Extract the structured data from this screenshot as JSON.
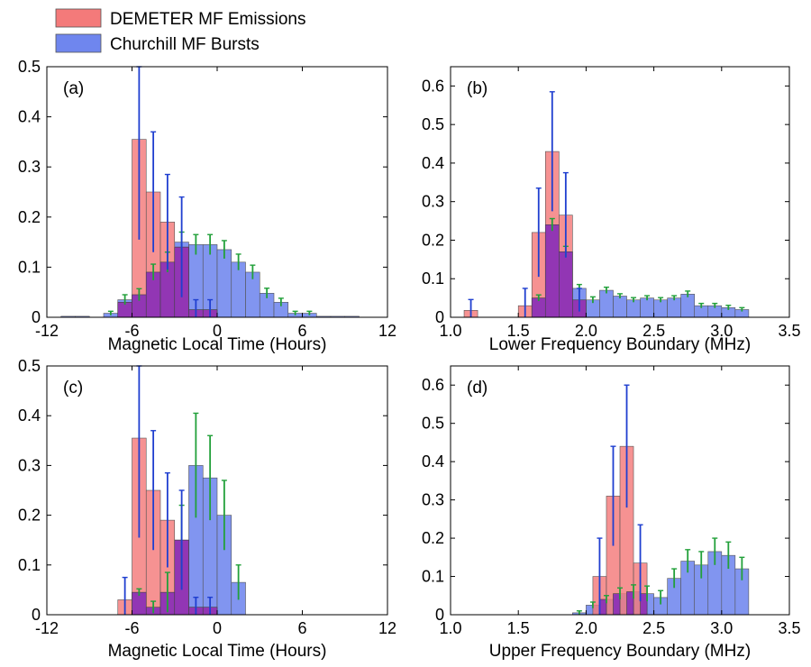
{
  "legend": {
    "placement": "top-left",
    "items": [
      {
        "label": "DEMETER MF Emissions",
        "color": "#f47a7a"
      },
      {
        "label": "Churchill MF Bursts",
        "color": "#6f86ee"
      }
    ]
  },
  "colors": {
    "demeter": "#f47a7a",
    "churchill": "#6f86ee",
    "overlap": "#8a2fb8",
    "err_demeter": "#1f3fd0",
    "err_churchill": "#22a03a"
  },
  "chart_data": [
    {
      "type": "bar",
      "panel_label": "(a)",
      "xlabel": "Magnetic Local Time (Hours)",
      "ylabel": "",
      "xlim": [
        -12,
        12
      ],
      "ylim": [
        0,
        0.5
      ],
      "xticks": [
        -12,
        -6,
        0,
        6,
        12
      ],
      "xtick_labels": [
        "-12",
        "-6",
        "0",
        "6",
        "12"
      ],
      "yticks": [
        0,
        0.1,
        0.2,
        0.3,
        0.4,
        0.5
      ],
      "ytick_labels": [
        "0",
        "0.1",
        "0.2",
        "0.3",
        "0.4",
        "0.5"
      ],
      "bin_edges": [
        -12,
        -11,
        -10,
        -9,
        -8,
        -7,
        -6,
        -5,
        -4,
        -3,
        -2,
        -1,
        0,
        1,
        2,
        3,
        4,
        5,
        6,
        7,
        8,
        9,
        10,
        11,
        12
      ],
      "series": [
        {
          "name": "DEMETER MF Emissions",
          "values": [
            0,
            0,
            0,
            0,
            0,
            0.03,
            0.355,
            0.25,
            0.19,
            0.14,
            0.015,
            0.015,
            0,
            0,
            0,
            0,
            0,
            0,
            0,
            0,
            0,
            0,
            0,
            0
          ],
          "errors": [
            0,
            0,
            0,
            0,
            0,
            0,
            0.2,
            0.12,
            0.095,
            0.1,
            0.02,
            0.02,
            0,
            0,
            0,
            0,
            0,
            0,
            0,
            0,
            0,
            0,
            0,
            0
          ]
        },
        {
          "name": "Churchill MF Bursts",
          "values": [
            0,
            0.002,
            0.002,
            0,
            0.008,
            0.035,
            0.045,
            0.09,
            0.11,
            0.15,
            0.145,
            0.145,
            0.135,
            0.11,
            0.09,
            0.048,
            0.03,
            0.008,
            0.008,
            0.002,
            0.002,
            0.002,
            0,
            0
          ],
          "errors": [
            0,
            0,
            0,
            0,
            0.004,
            0.01,
            0.012,
            0.016,
            0.02,
            0.02,
            0.02,
            0.02,
            0.018,
            0.016,
            0.014,
            0.01,
            0.008,
            0.004,
            0.004,
            0,
            0,
            0,
            0,
            0
          ]
        }
      ]
    },
    {
      "type": "bar",
      "panel_label": "(b)",
      "xlabel": "Lower Frequency Boundary (MHz)",
      "ylabel": "",
      "xlim": [
        1.0,
        3.5
      ],
      "ylim": [
        0,
        0.65
      ],
      "xticks": [
        1.0,
        1.5,
        2.0,
        2.5,
        3.0,
        3.5
      ],
      "xtick_labels": [
        "1.0",
        "1.5",
        "2.0",
        "2.5",
        "3.0",
        "3.5"
      ],
      "yticks": [
        0,
        0.1,
        0.2,
        0.3,
        0.4,
        0.5,
        0.6
      ],
      "ytick_labels": [
        "0",
        "0.1",
        "0.2",
        "0.3",
        "0.4",
        "0.5",
        "0.6"
      ],
      "bin_edges": [
        1.0,
        1.1,
        1.2,
        1.3,
        1.4,
        1.5,
        1.6,
        1.7,
        1.8,
        1.9,
        2.0,
        2.1,
        2.2,
        2.3,
        2.4,
        2.5,
        2.6,
        2.7,
        2.8,
        2.9,
        3.0,
        3.1,
        3.2,
        3.3,
        3.4,
        3.5
      ],
      "series": [
        {
          "name": "DEMETER MF Emissions",
          "values": [
            0,
            0.018,
            0,
            0,
            0,
            0.03,
            0.22,
            0.43,
            0.265,
            0.045,
            0,
            0,
            0,
            0,
            0,
            0,
            0,
            0,
            0,
            0,
            0,
            0,
            0,
            0,
            0
          ],
          "errors": [
            0,
            0.028,
            0,
            0,
            0,
            0.045,
            0.115,
            0.155,
            0.11,
            0.03,
            0,
            0,
            0,
            0,
            0,
            0,
            0,
            0,
            0,
            0,
            0,
            0,
            0,
            0,
            0
          ]
        },
        {
          "name": "Churchill MF Bursts",
          "values": [
            0,
            0,
            0,
            0,
            0,
            0,
            0.05,
            0.24,
            0.17,
            0.075,
            0.045,
            0.07,
            0.055,
            0.045,
            0.05,
            0.045,
            0.05,
            0.06,
            0.03,
            0.03,
            0.025,
            0.02,
            0,
            0,
            0
          ],
          "errors": [
            0,
            0,
            0,
            0,
            0,
            0,
            0.008,
            0.016,
            0.014,
            0.01,
            0.008,
            0.008,
            0.006,
            0.006,
            0.006,
            0.006,
            0.006,
            0.008,
            0.006,
            0.006,
            0.006,
            0.005,
            0,
            0,
            0
          ]
        }
      ]
    },
    {
      "type": "bar",
      "panel_label": "(c)",
      "xlabel": "Magnetic Local Time (Hours)",
      "ylabel": "",
      "xlim": [
        -12,
        12
      ],
      "ylim": [
        0,
        0.5
      ],
      "xticks": [
        -12,
        -6,
        0,
        6,
        12
      ],
      "xtick_labels": [
        "-12",
        "-6",
        "0",
        "6",
        "12"
      ],
      "yticks": [
        0,
        0.1,
        0.2,
        0.3,
        0.4,
        0.5
      ],
      "ytick_labels": [
        "0",
        "0.1",
        "0.2",
        "0.3",
        "0.4",
        "0.5"
      ],
      "bin_edges": [
        -12,
        -11,
        -10,
        -9,
        -8,
        -7,
        -6,
        -5,
        -4,
        -3,
        -2,
        -1,
        0,
        1,
        2,
        3,
        4,
        5,
        6,
        7,
        8,
        9,
        10,
        11,
        12
      ],
      "series": [
        {
          "name": "DEMETER MF Emissions",
          "values": [
            0,
            0,
            0,
            0,
            0,
            0.03,
            0.355,
            0.25,
            0.19,
            0.15,
            0.015,
            0.015,
            0,
            0,
            0,
            0,
            0,
            0,
            0,
            0,
            0,
            0,
            0,
            0
          ],
          "errors": [
            0,
            0,
            0,
            0,
            0,
            0.045,
            0.2,
            0.12,
            0.095,
            0.1,
            0.02,
            0.02,
            0,
            0,
            0,
            0,
            0,
            0,
            0,
            0,
            0,
            0,
            0,
            0
          ]
        },
        {
          "name": "Churchill MF Bursts",
          "values": [
            0,
            0,
            0,
            0,
            0,
            0,
            0.045,
            0.015,
            0.045,
            0.15,
            0.3,
            0.275,
            0.2,
            0.065,
            0,
            0,
            0,
            0,
            0,
            0,
            0,
            0,
            0,
            0
          ],
          "errors": [
            0,
            0,
            0,
            0,
            0,
            0,
            0.007,
            0.012,
            0.04,
            0.07,
            0.105,
            0.085,
            0.07,
            0.035,
            0,
            0,
            0,
            0,
            0,
            0,
            0,
            0,
            0,
            0
          ]
        }
      ]
    },
    {
      "type": "bar",
      "panel_label": "(d)",
      "xlabel": "Upper Frequency Boundary (MHz)",
      "ylabel": "",
      "xlim": [
        1.0,
        3.5
      ],
      "ylim": [
        0,
        0.65
      ],
      "xticks": [
        1.0,
        1.5,
        2.0,
        2.5,
        3.0,
        3.5
      ],
      "xtick_labels": [
        "1.0",
        "1.5",
        "2.0",
        "2.5",
        "3.0",
        "3.5"
      ],
      "yticks": [
        0,
        0.1,
        0.2,
        0.3,
        0.4,
        0.5,
        0.6
      ],
      "ytick_labels": [
        "0",
        "0.1",
        "0.2",
        "0.3",
        "0.4",
        "0.5",
        "0.6"
      ],
      "bin_edges": [
        1.0,
        1.1,
        1.2,
        1.3,
        1.4,
        1.5,
        1.6,
        1.7,
        1.8,
        1.9,
        2.0,
        2.1,
        2.2,
        2.3,
        2.4,
        2.5,
        2.6,
        2.7,
        2.8,
        2.9,
        3.0,
        3.1,
        3.2,
        3.3,
        3.4,
        3.5
      ],
      "series": [
        {
          "name": "DEMETER MF Emissions",
          "values": [
            0,
            0,
            0,
            0,
            0,
            0,
            0,
            0,
            0,
            0,
            0,
            0.1,
            0.31,
            0.44,
            0.135,
            0,
            0,
            0,
            0,
            0,
            0,
            0,
            0,
            0,
            0
          ],
          "errors": [
            0,
            0,
            0,
            0,
            0,
            0,
            0,
            0,
            0,
            0,
            0,
            0.1,
            0.13,
            0.16,
            0.1,
            0,
            0,
            0,
            0,
            0,
            0,
            0,
            0,
            0,
            0
          ],
          "x_offset": -0.05
        },
        {
          "name": "Churchill MF Bursts",
          "values": [
            0,
            0,
            0,
            0,
            0,
            0,
            0,
            0,
            0,
            0.005,
            0.025,
            0.04,
            0.055,
            0.06,
            0.055,
            0.045,
            0.095,
            0.14,
            0.13,
            0.165,
            0.155,
            0.12,
            0,
            0,
            0
          ],
          "errors": [
            0,
            0,
            0,
            0,
            0,
            0,
            0,
            0,
            0,
            0.005,
            0.008,
            0.01,
            0.015,
            0.018,
            0.02,
            0.018,
            0.025,
            0.03,
            0.035,
            0.035,
            0.035,
            0.03,
            0,
            0,
            0
          ]
        }
      ]
    }
  ]
}
